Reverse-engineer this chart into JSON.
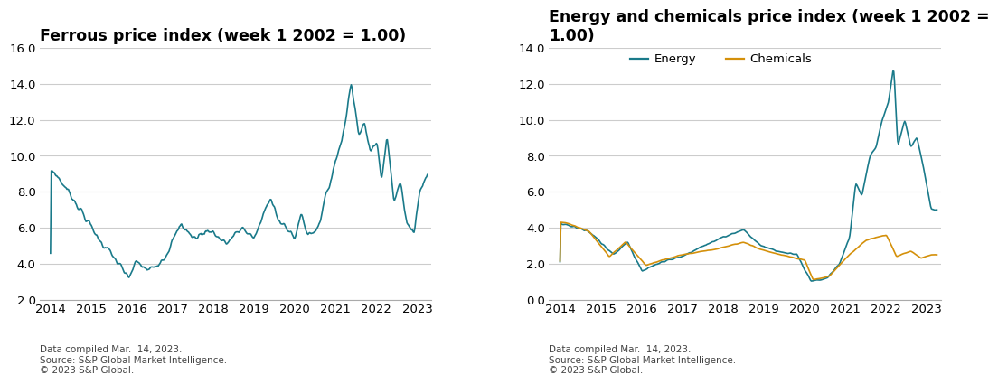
{
  "ferrous_title": "Ferrous price index (week 1 2002 = 1.00)",
  "energy_chem_title": "Energy and chemicals price index (week 1 2002 =\n1.00)",
  "ferrous_color": "#1a7a8a",
  "energy_color": "#1a7a8a",
  "chemicals_color": "#d4900a",
  "ferrous_ylim": [
    2.0,
    16.0
  ],
  "ferrous_yticks": [
    2.0,
    4.0,
    6.0,
    8.0,
    10.0,
    12.0,
    14.0,
    16.0
  ],
  "energy_ylim": [
    0.0,
    14.0
  ],
  "energy_yticks": [
    0.0,
    2.0,
    4.0,
    6.0,
    8.0,
    10.0,
    12.0,
    14.0
  ],
  "xlim_start": 2013.73,
  "xlim_end": 2023.35,
  "xticks": [
    2014,
    2015,
    2016,
    2017,
    2018,
    2019,
    2020,
    2021,
    2022,
    2023
  ],
  "footnote1": "Data compiled Mar.  14, 2023.",
  "footnote2": "Source: S&P Global Market Intelligence.",
  "footnote3": "© 2023 S&P Global.",
  "title_fontsize": 12.5,
  "tick_fontsize": 9.5,
  "footnote_fontsize": 7.5,
  "legend_fontsize": 9.5,
  "bg_color": "#ffffff",
  "grid_color": "#cccccc",
  "line_width": 1.2
}
